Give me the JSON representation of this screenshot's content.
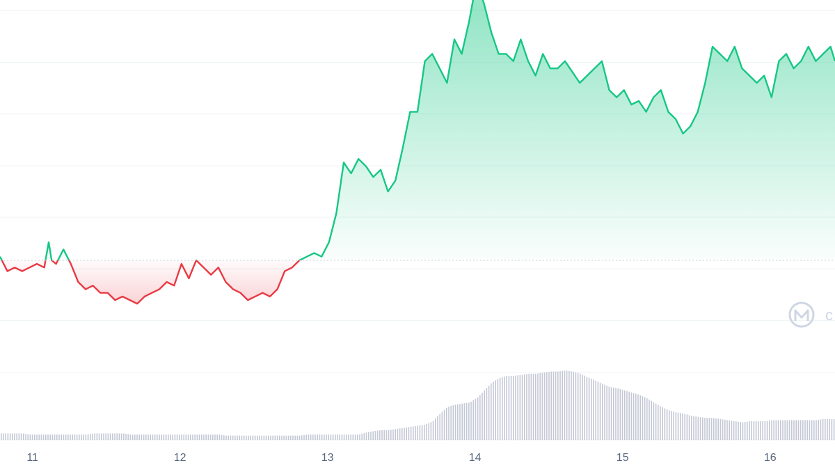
{
  "chart_data": {
    "type": "area",
    "title": "",
    "xlabel": "",
    "ylabel": "",
    "x_ticks": [
      "11",
      "12",
      "13",
      "14",
      "15",
      "16"
    ],
    "xlim": [
      10.78,
      16.44
    ],
    "ylim": [
      0,
      100
    ],
    "baseline": 31,
    "grid": "horizontal",
    "colors": {
      "up": "#16c784",
      "down": "#ea3943",
      "volume": "#c3c8d4",
      "grid": "#eff2f5",
      "baseline": "#c9ced8"
    },
    "watermark_icon": "coinmarketcap-logo-icon",
    "series": [
      {
        "x": [
          10.78,
          10.83,
          10.88,
          10.93,
          10.98,
          11.03,
          11.08,
          11.11,
          11.13,
          11.16,
          11.21,
          11.26,
          11.31,
          11.36,
          11.41,
          11.46,
          11.51,
          11.56,
          11.61,
          11.66,
          11.71,
          11.76,
          11.81,
          11.86,
          11.91,
          11.96,
          12.01,
          12.06,
          12.11,
          12.16,
          12.21,
          12.26,
          12.31,
          12.36,
          12.41,
          12.46,
          12.51,
          12.56,
          12.61,
          12.66,
          12.71,
          12.76,
          12.81,
          12.86,
          12.91,
          12.96,
          13.01,
          13.06,
          13.11,
          13.16,
          13.21,
          13.26,
          13.31,
          13.36,
          13.41,
          13.46,
          13.51,
          13.56,
          13.61,
          13.66,
          13.71,
          13.76,
          13.81,
          13.86,
          13.91,
          13.96,
          14.01,
          14.06,
          14.11,
          14.16,
          14.21,
          14.26,
          14.31,
          14.36,
          14.41,
          14.46,
          14.51,
          14.56,
          14.61,
          14.66,
          14.71,
          14.76,
          14.81,
          14.86,
          14.91,
          14.96,
          15.01,
          15.06,
          15.11,
          15.16,
          15.21,
          15.26,
          15.31,
          15.36,
          15.41,
          15.46,
          15.51,
          15.56,
          15.61,
          15.66,
          15.71,
          15.76,
          15.81,
          15.86,
          15.91,
          15.96,
          16.01,
          16.06,
          16.11,
          16.16,
          16.21,
          16.26,
          16.31,
          16.36,
          16.41,
          16.44
        ],
        "values": [
          32,
          28,
          29,
          28,
          29,
          30,
          29,
          36,
          31,
          30,
          34,
          30,
          25,
          23,
          24,
          22,
          22,
          20,
          21,
          20,
          19,
          21,
          22,
          23,
          25,
          24,
          30,
          26,
          31,
          29,
          27,
          29,
          25,
          23,
          22,
          20,
          21,
          22,
          21,
          23,
          28,
          29,
          31,
          32,
          33,
          32,
          36,
          44,
          58,
          55,
          59,
          57,
          54,
          56,
          50,
          53,
          62,
          72,
          72,
          86,
          88,
          84,
          80,
          92,
          88,
          97,
          108,
          102,
          94,
          88,
          88,
          86,
          92,
          86,
          82,
          88,
          84,
          84,
          86,
          83,
          80,
          82,
          84,
          86,
          78,
          76,
          78,
          74,
          75,
          72,
          76,
          78,
          72,
          70,
          66,
          68,
          72,
          80,
          90,
          88,
          86,
          90,
          84,
          82,
          80,
          82,
          76,
          86,
          88,
          84,
          86,
          90,
          86,
          88,
          90,
          86
        ],
        "volume": [
          6,
          6,
          6,
          6,
          5,
          5,
          5,
          5,
          5,
          5,
          5,
          5,
          5,
          5,
          6,
          6,
          6,
          6,
          6,
          5,
          5,
          5,
          5,
          5,
          5,
          5,
          5,
          5,
          5,
          5,
          5,
          5,
          4,
          4,
          4,
          4,
          4,
          4,
          4,
          4,
          4,
          4,
          4,
          5,
          5,
          5,
          5,
          5,
          5,
          5,
          5,
          7,
          8,
          9,
          9,
          10,
          11,
          12,
          13,
          14,
          17,
          24,
          30,
          32,
          33,
          34,
          38,
          45,
          52,
          56,
          58,
          58,
          59,
          60,
          60,
          61,
          62,
          62,
          63,
          62,
          60,
          57,
          54,
          51,
          48,
          47,
          45,
          43,
          41,
          38,
          34,
          30,
          27,
          25,
          24,
          22,
          21,
          20,
          20,
          19,
          18,
          17,
          16,
          17,
          17,
          17,
          18,
          18,
          18,
          18,
          18,
          18,
          18,
          19,
          19,
          19
        ]
      }
    ]
  }
}
